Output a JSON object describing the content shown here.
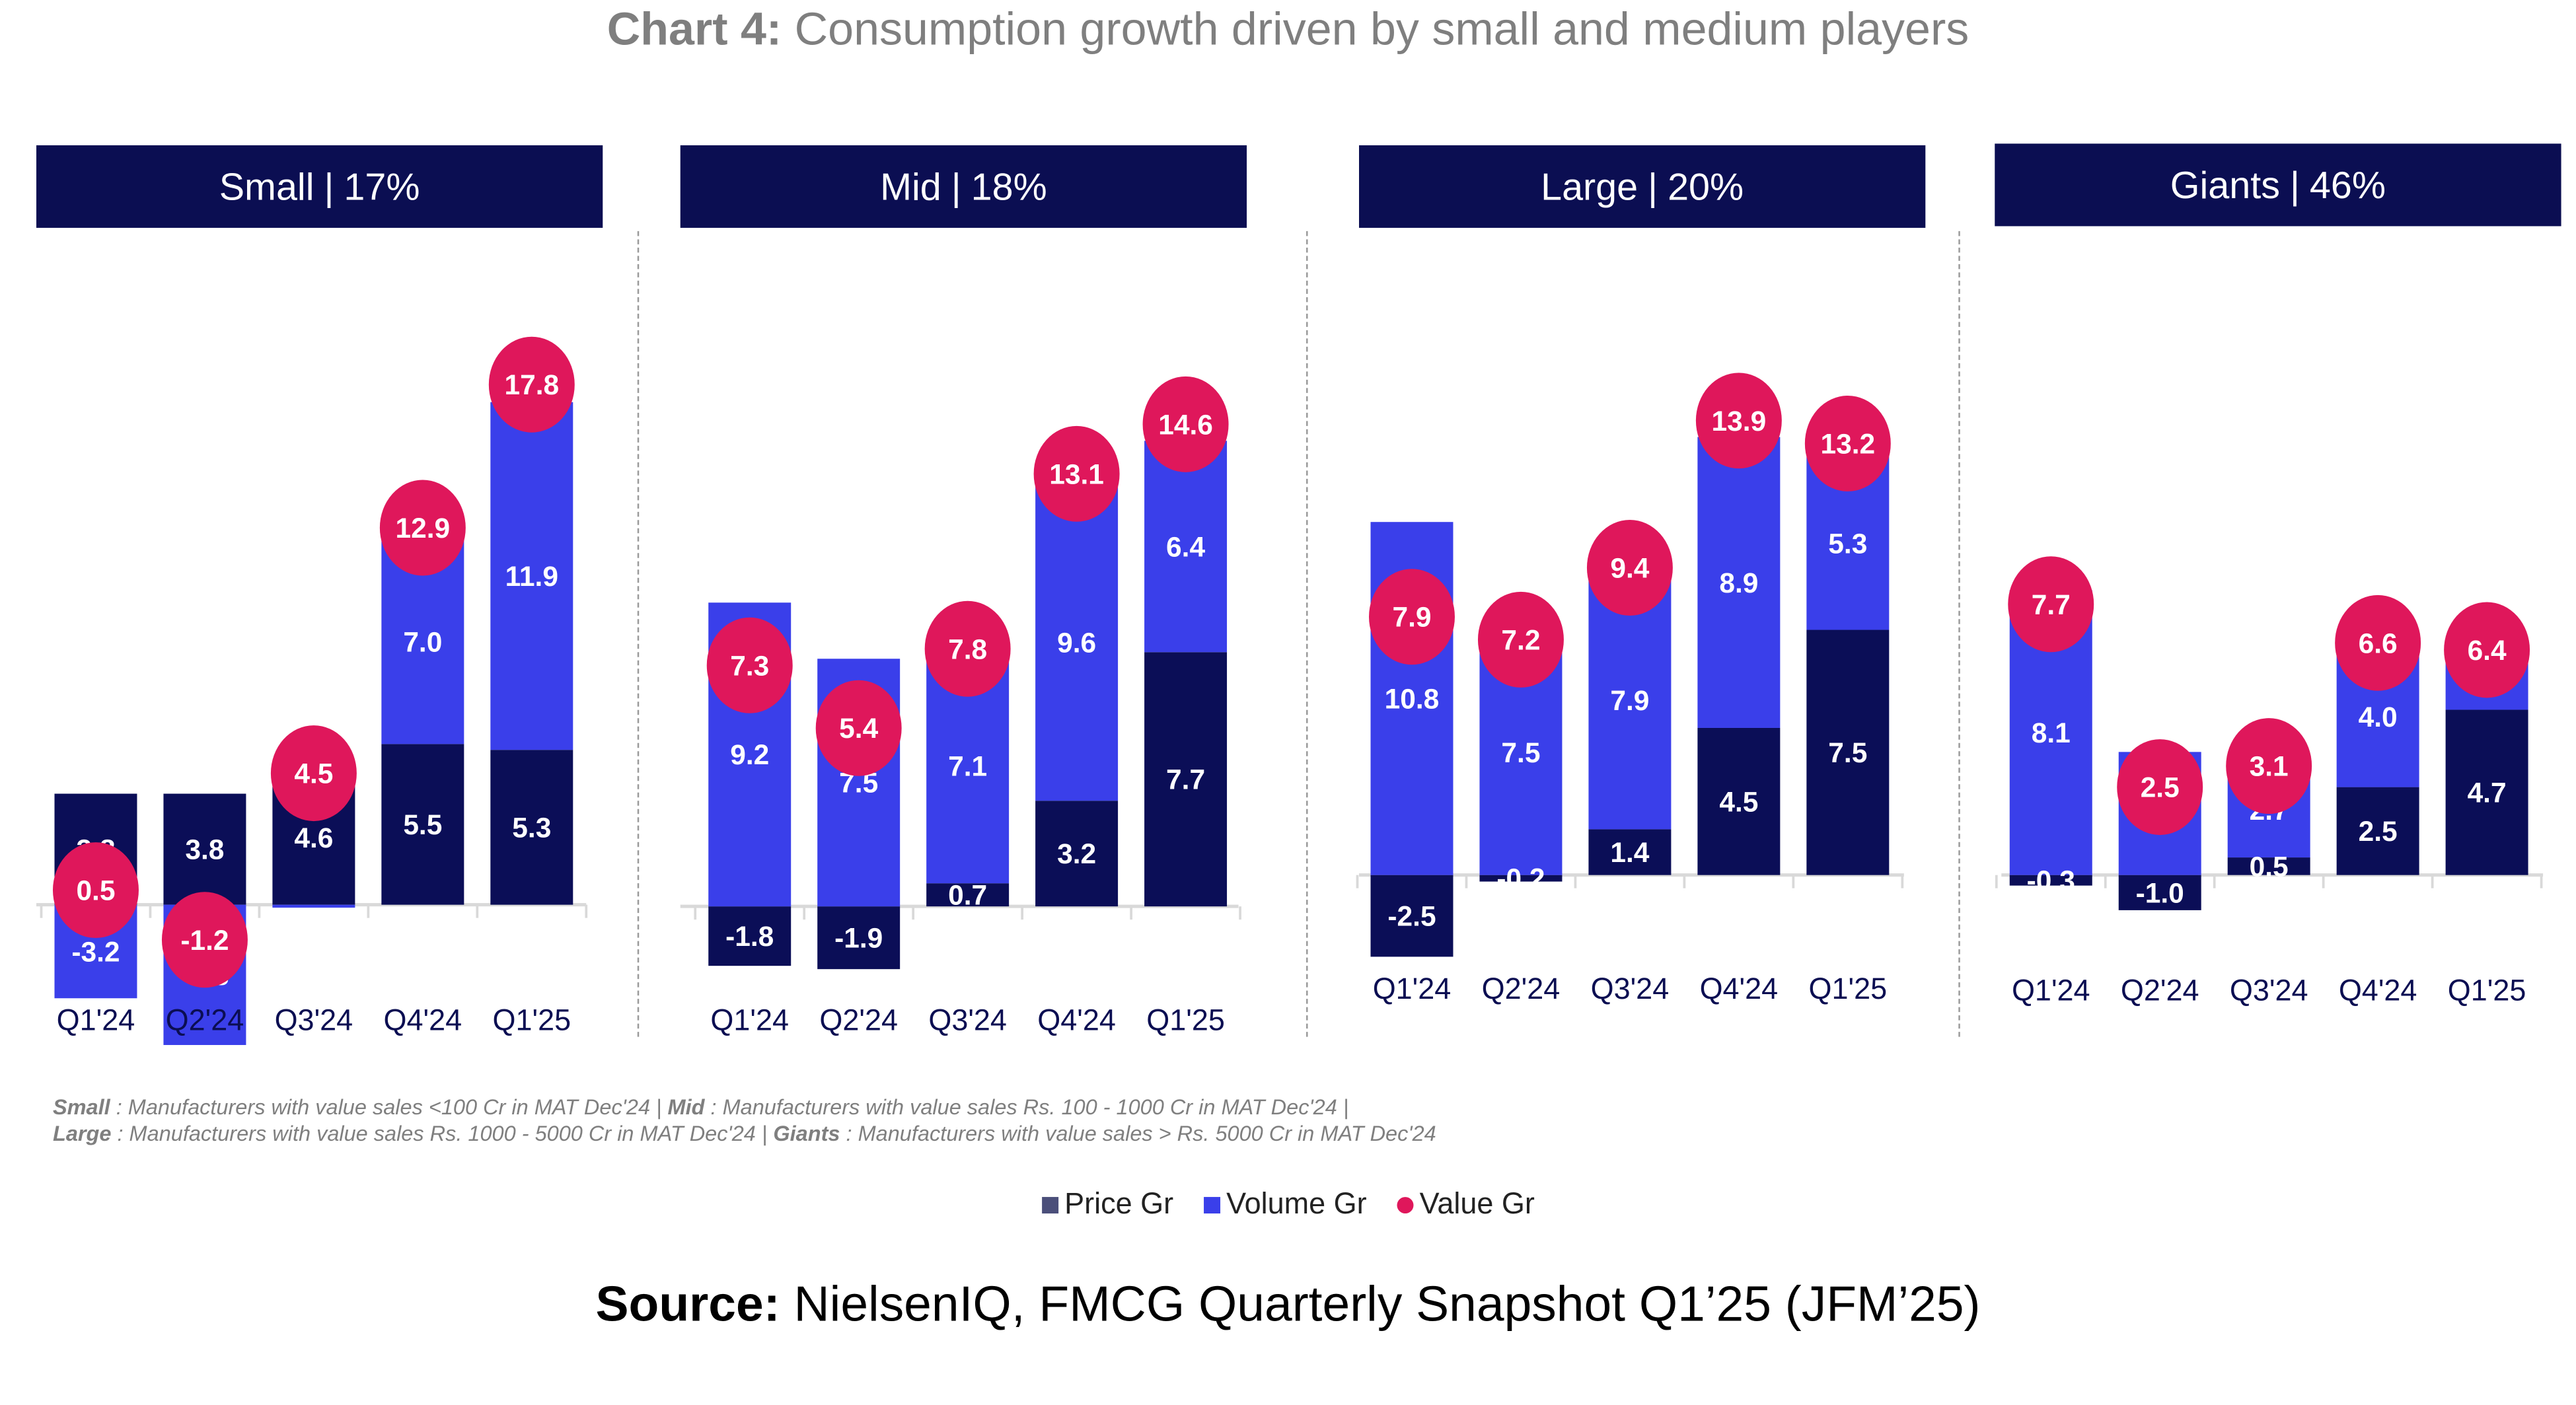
{
  "title": {
    "prefix": "Chart 4:",
    "text": "Consumption growth driven by small and medium players"
  },
  "colors": {
    "price": "#0b0e57",
    "volume": "#3a3fea",
    "value": "#df175b",
    "header_bg": "#0b0e52"
  },
  "chart_data": {
    "type": "bar",
    "stacked": true,
    "categories": [
      "Q1'24",
      "Q2'24",
      "Q3'24",
      "Q4'24",
      "Q1'25"
    ],
    "legend": [
      "Price Gr",
      "Volume Gr",
      "Value Gr"
    ],
    "legend_position": "bottom",
    "grid": false,
    "panels": [
      {
        "label": "Small",
        "share": "17%",
        "price": [
          3.8,
          3.8,
          4.6,
          5.5,
          5.3
        ],
        "volume": [
          -3.2,
          -4.8,
          -0.1,
          7.0,
          11.9
        ],
        "value": [
          0.5,
          -1.2,
          4.5,
          12.9,
          17.8
        ]
      },
      {
        "label": "Mid",
        "share": "18%",
        "price": [
          -1.8,
          -1.9,
          0.7,
          3.2,
          7.7
        ],
        "volume": [
          9.2,
          7.5,
          7.1,
          9.6,
          6.4
        ],
        "value": [
          7.3,
          5.4,
          7.8,
          13.1,
          14.6
        ]
      },
      {
        "label": "Large",
        "share": "20%",
        "price": [
          -2.5,
          -0.2,
          1.4,
          4.5,
          7.5
        ],
        "volume": [
          10.8,
          7.5,
          7.9,
          8.9,
          5.3
        ],
        "value": [
          7.9,
          7.2,
          9.4,
          13.9,
          13.2
        ]
      },
      {
        "label": "Giants",
        "share": "46%",
        "price": [
          -0.3,
          -1.0,
          0.5,
          2.5,
          4.7
        ],
        "volume": [
          8.1,
          3.5,
          2.7,
          4.0,
          1.6
        ],
        "value": [
          7.7,
          2.5,
          3.1,
          6.6,
          6.4
        ]
      }
    ]
  },
  "footnote": {
    "line1": [
      {
        "term": "Small",
        "def": " : Manufacturers with value sales <100 Cr in MAT Dec'24 | "
      },
      {
        "term": "Mid",
        "def": " : Manufacturers with value sales Rs. 100 - 1000 Cr in MAT Dec'24 |"
      }
    ],
    "line2": [
      {
        "term": "Large",
        "def": " : Manufacturers with value sales Rs. 1000 - 5000 Cr in MAT Dec'24 | "
      },
      {
        "term": "Giants",
        "def": " : Manufacturers with value sales > Rs. 5000 Cr in MAT Dec'24"
      }
    ]
  },
  "source": {
    "label": "Source:",
    "text": " NielsenIQ, FMCG Quarterly Snapshot Q1’25 (JFM’25)"
  }
}
